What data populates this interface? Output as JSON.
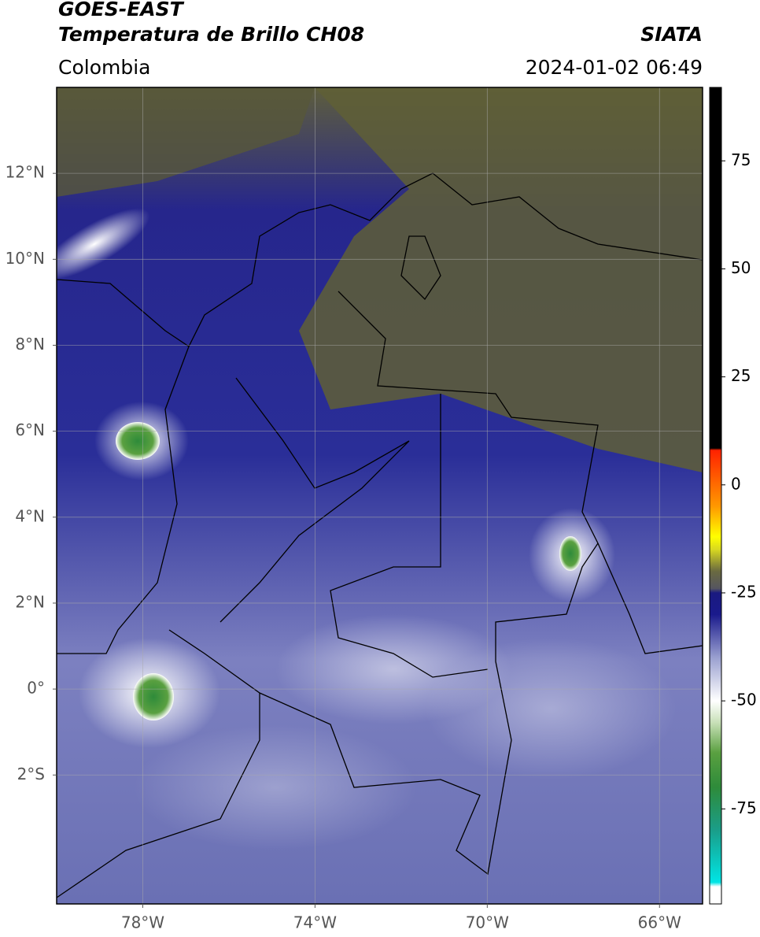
{
  "chart_data": {
    "type": "map",
    "title": "GOES-EAST",
    "subtitle": "Temperatura de Brillo CH08",
    "source": "SIATA",
    "region": "Colombia",
    "datetime": "2024-01-02 06:49",
    "xlim": [
      -80,
      -65
    ],
    "ylim": [
      -5,
      14
    ],
    "xticks": [
      {
        "value": -78,
        "label": "78°W"
      },
      {
        "value": -74,
        "label": "74°W"
      },
      {
        "value": -70,
        "label": "70°W"
      },
      {
        "value": -66,
        "label": "66°W"
      }
    ],
    "yticks": [
      {
        "value": 12,
        "label": "12°N"
      },
      {
        "value": 10,
        "label": "10°N"
      },
      {
        "value": 8,
        "label": "8°N"
      },
      {
        "value": 6,
        "label": "6°N"
      },
      {
        "value": 4,
        "label": "4°N"
      },
      {
        "value": 2,
        "label": "2°N"
      },
      {
        "value": 0,
        "label": "0°"
      },
      {
        "value": -2,
        "label": "2°S"
      }
    ],
    "grid": true,
    "colorbar": {
      "clim": [
        -97,
        92
      ],
      "ticks": [
        75,
        50,
        25,
        0,
        -25,
        -50,
        -75
      ],
      "stops": [
        {
          "value": -97,
          "color": "#ffffff"
        },
        {
          "value": -93,
          "color": "#ffffff"
        },
        {
          "value": -92,
          "color": "#00e5e5"
        },
        {
          "value": -80,
          "color": "#1a9e8a"
        },
        {
          "value": -70,
          "color": "#2e8b3a"
        },
        {
          "value": -62,
          "color": "#5aa040"
        },
        {
          "value": -55,
          "color": "#c8e0b8"
        },
        {
          "value": -50,
          "color": "#ffffff"
        },
        {
          "value": -40,
          "color": "#9aa0d0"
        },
        {
          "value": -30,
          "color": "#1a1a8c"
        },
        {
          "value": -25,
          "color": "#1a1a80"
        },
        {
          "value": -24,
          "color": "#555560"
        },
        {
          "value": -20,
          "color": "#6a6a40"
        },
        {
          "value": -15,
          "color": "#d8d820"
        },
        {
          "value": -12,
          "color": "#ffff00"
        },
        {
          "value": -5,
          "color": "#ff9900"
        },
        {
          "value": 8,
          "color": "#ff2200"
        },
        {
          "value": 8.5,
          "color": "#000000"
        },
        {
          "value": 92,
          "color": "#000000"
        }
      ]
    }
  }
}
